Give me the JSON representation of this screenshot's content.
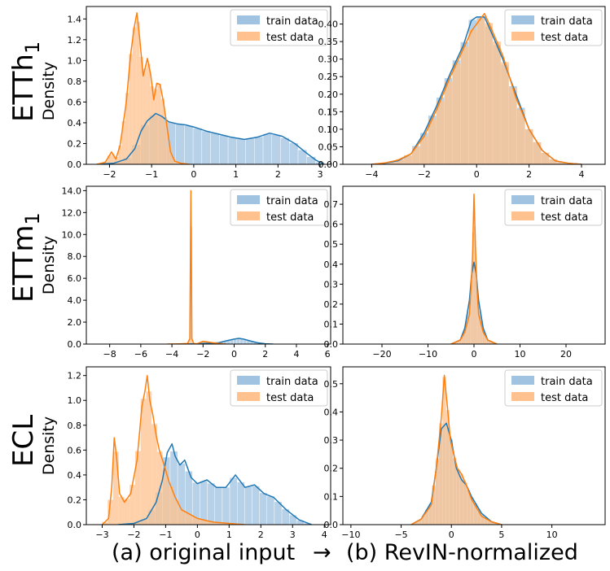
{
  "colors": {
    "train": "#1f77b4",
    "test": "#ff7f0e",
    "train_fill": "#9fc3e0",
    "test_fill": "#ffc28e"
  },
  "caption": {
    "left": "(a) original input",
    "arrow": "→",
    "right": "(b) RevIN-normalized"
  },
  "rows": [
    {
      "dataset": "ETTh",
      "dataset_sub": "1",
      "ylabel": "Density"
    },
    {
      "dataset": "ETTm",
      "dataset_sub": "1",
      "ylabel": "Density"
    },
    {
      "dataset": "ECL",
      "dataset_sub": "",
      "ylabel": "Density"
    }
  ],
  "chart_data": [
    {
      "type": "area",
      "panel": "ETTh1 (a) original input",
      "xlim": [
        -2.55,
        3.25
      ],
      "ylim": [
        0,
        1.52
      ],
      "xticks": [
        -2,
        -1,
        0,
        1,
        2,
        3
      ],
      "xtick_labels": [
        "−2",
        "−1",
        "0",
        "1",
        "2",
        "3"
      ],
      "yticks": [
        0.0,
        0.2,
        0.4,
        0.6,
        0.8,
        1.0,
        1.2,
        1.4
      ],
      "ytick_labels": [
        "0.0",
        "0.2",
        "0.4",
        "0.6",
        "0.8",
        "1.0",
        "1.2",
        "1.4"
      ],
      "legend": {
        "position": "top-right",
        "entries": [
          "train data",
          "test data"
        ]
      },
      "series": [
        {
          "name": "train data",
          "x": [
            -2.3,
            -1.9,
            -1.6,
            -1.4,
            -1.25,
            -1.1,
            -0.9,
            -0.75,
            -0.6,
            -0.4,
            -0.2,
            0,
            0.3,
            0.6,
            0.9,
            1.2,
            1.5,
            1.8,
            2.1,
            2.4,
            2.7,
            2.9,
            3.1
          ],
          "y": [
            0.0,
            0.01,
            0.05,
            0.15,
            0.32,
            0.42,
            0.49,
            0.46,
            0.41,
            0.39,
            0.38,
            0.36,
            0.32,
            0.29,
            0.26,
            0.24,
            0.26,
            0.3,
            0.27,
            0.2,
            0.1,
            0.04,
            0.0
          ]
        },
        {
          "name": "test data",
          "x": [
            -2.3,
            -2.1,
            -1.95,
            -1.85,
            -1.75,
            -1.6,
            -1.5,
            -1.42,
            -1.35,
            -1.28,
            -1.2,
            -1.1,
            -1.02,
            -0.95,
            -0.88,
            -0.8,
            -0.72,
            -0.63,
            -0.55,
            -0.45,
            -0.3,
            -0.1
          ],
          "y": [
            0.0,
            0.02,
            0.12,
            0.05,
            0.18,
            0.6,
            1.05,
            1.3,
            1.46,
            1.2,
            0.85,
            1.02,
            0.86,
            0.62,
            0.78,
            0.77,
            0.6,
            0.35,
            0.12,
            0.03,
            0.01,
            0.0
          ]
        }
      ]
    },
    {
      "type": "area",
      "panel": "ETTh1 (b) RevIN-normalized",
      "xlim": [
        -5.1,
        4.9
      ],
      "ylim": [
        0,
        0.45
      ],
      "xticks": [
        -4,
        -2,
        0,
        2,
        4
      ],
      "xtick_labels": [
        "−4",
        "−2",
        "0",
        "2",
        "4"
      ],
      "yticks": [
        0.0,
        0.05,
        0.1,
        0.15,
        0.2,
        0.25,
        0.3,
        0.35,
        0.4
      ],
      "ytick_labels": [
        "0.00",
        "0.05",
        "0.10",
        "0.15",
        "0.20",
        "0.25",
        "0.30",
        "0.35",
        "0.40"
      ],
      "legend": {
        "position": "top-right",
        "entries": [
          "train data",
          "test data"
        ]
      },
      "series": [
        {
          "name": "train data",
          "x": [
            -4,
            -3.5,
            -3,
            -2.5,
            -2,
            -1.5,
            -1,
            -0.5,
            -0.2,
            0,
            0.3,
            0.6,
            1,
            1.5,
            2,
            2.5,
            3,
            3.5,
            4
          ],
          "y": [
            0.0,
            0.003,
            0.01,
            0.03,
            0.09,
            0.17,
            0.26,
            0.34,
            0.41,
            0.42,
            0.42,
            0.37,
            0.3,
            0.2,
            0.1,
            0.04,
            0.01,
            0.003,
            0.0
          ]
        },
        {
          "name": "test data",
          "x": [
            -4,
            -3.5,
            -3,
            -2.5,
            -2,
            -1.5,
            -1,
            -0.5,
            -0.2,
            0,
            0.3,
            0.6,
            1,
            1.5,
            2,
            2.5,
            3,
            3.5,
            4
          ],
          "y": [
            0.0,
            0.004,
            0.012,
            0.03,
            0.08,
            0.16,
            0.25,
            0.33,
            0.38,
            0.4,
            0.43,
            0.38,
            0.31,
            0.19,
            0.1,
            0.04,
            0.01,
            0.003,
            0.0
          ]
        }
      ]
    },
    {
      "type": "area",
      "panel": "ETTm1 (a) original input",
      "xlim": [
        -9.5,
        6.2
      ],
      "ylim": [
        0,
        14.4
      ],
      "xticks": [
        -8,
        -6,
        -4,
        -2,
        0,
        2,
        4,
        6
      ],
      "xtick_labels": [
        "−8",
        "−6",
        "−4",
        "−2",
        "0",
        "2",
        "4",
        "6"
      ],
      "yticks": [
        0.0,
        2.0,
        4.0,
        6.0,
        8.0,
        10.0,
        12.0,
        14.0
      ],
      "ytick_labels": [
        "0.0",
        "2.0",
        "4.0",
        "6.0",
        "8.0",
        "10.0",
        "12.0",
        "14.0"
      ],
      "legend": {
        "position": "top-right",
        "entries": [
          "train data",
          "test data"
        ]
      },
      "series": [
        {
          "name": "train data",
          "x": [
            -3,
            -2.5,
            -2,
            -1.5,
            -1,
            -0.5,
            0,
            0.3,
            0.6,
            1,
            1.5,
            2,
            2.5
          ],
          "y": [
            0.0,
            0.02,
            0.05,
            0.08,
            0.12,
            0.3,
            0.45,
            0.52,
            0.45,
            0.3,
            0.12,
            0.03,
            0.0
          ]
        },
        {
          "name": "test data",
          "x": [
            -4.3,
            -3.5,
            -3.0,
            -2.85,
            -2.78,
            -2.72,
            -2.6,
            -2.4,
            -2.0,
            -1.5,
            -1.0,
            -0.5
          ],
          "y": [
            0.0,
            0.02,
            0.05,
            0.5,
            14.0,
            0.5,
            0.05,
            0.02,
            0.25,
            0.15,
            0.05,
            0.0
          ]
        }
      ]
    },
    {
      "type": "area",
      "panel": "ETTm1 (b) RevIN-normalized",
      "xlim": [
        -28.5,
        28.5
      ],
      "ylim": [
        0,
        0.79
      ],
      "xticks": [
        -20,
        -10,
        0,
        10,
        20
      ],
      "xtick_labels": [
        "−20",
        "−10",
        "0",
        "10",
        "20"
      ],
      "yticks": [
        0.0,
        0.1,
        0.2,
        0.3,
        0.4,
        0.5,
        0.6,
        0.7
      ],
      "ytick_labels": [
        "0.0",
        "0.1",
        "0.2",
        "0.3",
        "0.4",
        "0.5",
        "0.6",
        "0.7"
      ],
      "legend": {
        "position": "top-right",
        "entries": [
          "train data",
          "test data"
        ]
      },
      "series": [
        {
          "name": "train data",
          "x": [
            -5,
            -3,
            -2,
            -1,
            -0.5,
            0,
            0.5,
            1,
            2,
            3,
            5
          ],
          "y": [
            0.0,
            0.02,
            0.08,
            0.22,
            0.35,
            0.41,
            0.35,
            0.22,
            0.08,
            0.02,
            0.0
          ]
        },
        {
          "name": "test data",
          "x": [
            -5,
            -3,
            -2,
            -1,
            -0.6,
            -0.3,
            0,
            0.3,
            0.6,
            1,
            2,
            3,
            5
          ],
          "y": [
            0.0,
            0.02,
            0.06,
            0.15,
            0.3,
            0.45,
            0.75,
            0.5,
            0.3,
            0.15,
            0.06,
            0.02,
            0.0
          ]
        }
      ]
    },
    {
      "type": "area",
      "panel": "ECL (a) original input",
      "xlim": [
        -3.5,
        4.2
      ],
      "ylim": [
        0,
        1.27
      ],
      "xticks": [
        -3,
        -2,
        -1,
        0,
        1,
        2,
        3,
        4
      ],
      "xtick_labels": [
        "−3",
        "−2",
        "−1",
        "0",
        "1",
        "2",
        "3",
        "4"
      ],
      "yticks": [
        0.0,
        0.2,
        0.4,
        0.6,
        0.8,
        1.0,
        1.2
      ],
      "ytick_labels": [
        "0.0",
        "0.2",
        "0.4",
        "0.6",
        "0.8",
        "1.0",
        "1.2"
      ],
      "legend": {
        "position": "top-right",
        "entries": [
          "train data",
          "test data"
        ]
      },
      "series": [
        {
          "name": "train data",
          "x": [
            -2.5,
            -2,
            -1.6,
            -1.3,
            -1.1,
            -0.95,
            -0.8,
            -0.7,
            -0.55,
            -0.4,
            -0.2,
            0,
            0.3,
            0.6,
            0.9,
            1.2,
            1.5,
            1.8,
            2.1,
            2.4,
            2.8,
            3.2,
            3.6
          ],
          "y": [
            0.0,
            0.01,
            0.05,
            0.18,
            0.36,
            0.58,
            0.65,
            0.55,
            0.48,
            0.52,
            0.38,
            0.33,
            0.36,
            0.3,
            0.3,
            0.4,
            0.3,
            0.32,
            0.25,
            0.22,
            0.12,
            0.04,
            0.0
          ]
        },
        {
          "name": "test data",
          "x": [
            -3.0,
            -2.8,
            -2.7,
            -2.62,
            -2.55,
            -2.45,
            -2.3,
            -2.1,
            -1.9,
            -1.75,
            -1.65,
            -1.58,
            -1.5,
            -1.4,
            -1.3,
            -1.2,
            -1.05,
            -0.9,
            -0.7,
            -0.5,
            0,
            0.5,
            1.0,
            1.5
          ],
          "y": [
            0.0,
            0.05,
            0.3,
            0.7,
            0.55,
            0.25,
            0.18,
            0.25,
            0.52,
            0.95,
            1.08,
            1.2,
            1.0,
            0.88,
            0.72,
            0.6,
            0.48,
            0.35,
            0.22,
            0.12,
            0.05,
            0.02,
            0.01,
            0.0
          ]
        }
      ]
    },
    {
      "type": "area",
      "panel": "ECL (b) RevIN-normalized",
      "xlim": [
        -10.8,
        15.3
      ],
      "ylim": [
        0,
        0.56
      ],
      "xticks": [
        -10,
        -5,
        0,
        5,
        10
      ],
      "xtick_labels": [
        "−10",
        "−5",
        "0",
        "5",
        "10"
      ],
      "yticks": [
        0.0,
        0.1,
        0.2,
        0.3,
        0.4,
        0.5
      ],
      "ytick_labels": [
        "0.0",
        "0.1",
        "0.2",
        "0.3",
        "0.4",
        "0.5"
      ],
      "legend": {
        "position": "top-right",
        "entries": [
          "train data",
          "test data"
        ]
      },
      "series": [
        {
          "name": "train data",
          "x": [
            -4,
            -3,
            -2,
            -1.5,
            -1,
            -0.5,
            0,
            0.5,
            1,
            1.5,
            2,
            3,
            4,
            5
          ],
          "y": [
            0.0,
            0.02,
            0.08,
            0.2,
            0.34,
            0.36,
            0.3,
            0.2,
            0.16,
            0.14,
            0.1,
            0.04,
            0.01,
            0.0
          ]
        },
        {
          "name": "test data",
          "x": [
            -4,
            -3,
            -2,
            -1.5,
            -1,
            -0.7,
            -0.4,
            -0.1,
            0.3,
            0.6,
            1,
            1.5,
            2,
            3,
            4,
            5
          ],
          "y": [
            0.0,
            0.02,
            0.07,
            0.2,
            0.38,
            0.53,
            0.42,
            0.3,
            0.24,
            0.2,
            0.18,
            0.14,
            0.09,
            0.03,
            0.01,
            0.0
          ]
        }
      ]
    }
  ]
}
